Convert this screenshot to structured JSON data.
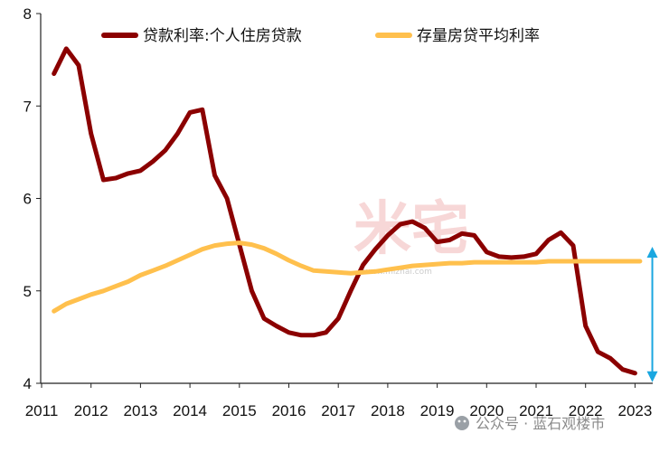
{
  "chart_data": {
    "type": "line",
    "title": "",
    "xlabel": "",
    "ylabel": "",
    "ylim": [
      4,
      8
    ],
    "xlim": [
      2011,
      2023.2
    ],
    "y_ticks": [
      4,
      5,
      6,
      7,
      8
    ],
    "x_ticks": [
      2011,
      2012,
      2013,
      2014,
      2015,
      2016,
      2017,
      2018,
      2019,
      2020,
      2021,
      2022,
      2023
    ],
    "grid": false,
    "legend_position": "top",
    "series": [
      {
        "name": "贷款利率:个人住房贷款",
        "color": "#8B0000",
        "points": [
          [
            2011.25,
            7.35
          ],
          [
            2011.5,
            7.62
          ],
          [
            2011.75,
            7.44
          ],
          [
            2012.0,
            6.7
          ],
          [
            2012.25,
            6.2
          ],
          [
            2012.5,
            6.22
          ],
          [
            2012.75,
            6.27
          ],
          [
            2013.0,
            6.3
          ],
          [
            2013.25,
            6.4
          ],
          [
            2013.5,
            6.52
          ],
          [
            2013.75,
            6.7
          ],
          [
            2014.0,
            6.93
          ],
          [
            2014.25,
            6.96
          ],
          [
            2014.5,
            6.25
          ],
          [
            2014.75,
            6.0
          ],
          [
            2015.0,
            5.5
          ],
          [
            2015.25,
            5.0
          ],
          [
            2015.5,
            4.7
          ],
          [
            2015.75,
            4.62
          ],
          [
            2016.0,
            4.55
          ],
          [
            2016.25,
            4.52
          ],
          [
            2016.5,
            4.52
          ],
          [
            2016.75,
            4.55
          ],
          [
            2017.0,
            4.7
          ],
          [
            2017.25,
            5.0
          ],
          [
            2017.5,
            5.28
          ],
          [
            2017.75,
            5.45
          ],
          [
            2018.0,
            5.6
          ],
          [
            2018.25,
            5.72
          ],
          [
            2018.5,
            5.75
          ],
          [
            2018.75,
            5.68
          ],
          [
            2019.0,
            5.53
          ],
          [
            2019.25,
            5.55
          ],
          [
            2019.5,
            5.62
          ],
          [
            2019.75,
            5.6
          ],
          [
            2020.0,
            5.42
          ],
          [
            2020.25,
            5.37
          ],
          [
            2020.5,
            5.36
          ],
          [
            2020.75,
            5.37
          ],
          [
            2021.0,
            5.4
          ],
          [
            2021.25,
            5.55
          ],
          [
            2021.5,
            5.63
          ],
          [
            2021.75,
            5.49
          ],
          [
            2022.0,
            4.62
          ],
          [
            2022.25,
            4.34
          ],
          [
            2022.5,
            4.27
          ],
          [
            2022.75,
            4.15
          ],
          [
            2023.0,
            4.11
          ]
        ]
      },
      {
        "name": "存量房贷平均利率",
        "color": "#FFC04D",
        "points": [
          [
            2011.25,
            4.78
          ],
          [
            2011.5,
            4.86
          ],
          [
            2011.75,
            4.91
          ],
          [
            2012.0,
            4.96
          ],
          [
            2012.25,
            5.0
          ],
          [
            2012.5,
            5.05
          ],
          [
            2012.75,
            5.1
          ],
          [
            2013.0,
            5.17
          ],
          [
            2013.25,
            5.22
          ],
          [
            2013.5,
            5.27
          ],
          [
            2013.75,
            5.33
          ],
          [
            2014.0,
            5.39
          ],
          [
            2014.25,
            5.45
          ],
          [
            2014.5,
            5.49
          ],
          [
            2014.75,
            5.51
          ],
          [
            2015.0,
            5.52
          ],
          [
            2015.25,
            5.5
          ],
          [
            2015.5,
            5.46
          ],
          [
            2015.75,
            5.4
          ],
          [
            2016.0,
            5.33
          ],
          [
            2016.25,
            5.27
          ],
          [
            2016.5,
            5.22
          ],
          [
            2016.75,
            5.21
          ],
          [
            2017.0,
            5.2
          ],
          [
            2017.25,
            5.19
          ],
          [
            2017.5,
            5.2
          ],
          [
            2017.75,
            5.21
          ],
          [
            2018.0,
            5.23
          ],
          [
            2018.25,
            5.25
          ],
          [
            2018.5,
            5.27
          ],
          [
            2018.75,
            5.28
          ],
          [
            2019.0,
            5.29
          ],
          [
            2019.25,
            5.3
          ],
          [
            2019.5,
            5.3
          ],
          [
            2019.75,
            5.31
          ],
          [
            2020.0,
            5.31
          ],
          [
            2020.25,
            5.31
          ],
          [
            2020.5,
            5.31
          ],
          [
            2020.75,
            5.31
          ],
          [
            2021.0,
            5.31
          ],
          [
            2021.25,
            5.32
          ],
          [
            2021.5,
            5.32
          ],
          [
            2021.75,
            5.32
          ],
          [
            2022.0,
            5.32
          ],
          [
            2022.25,
            5.32
          ],
          [
            2022.5,
            5.32
          ],
          [
            2022.75,
            5.32
          ],
          [
            2023.0,
            5.32
          ],
          [
            2023.1,
            5.32
          ]
        ]
      }
    ],
    "annotations": [
      {
        "type": "double-arrow",
        "color": "#1AA7E0",
        "x": 2023.35,
        "y_from": 5.32,
        "y_to": 4.11
      }
    ]
  },
  "watermark": {
    "text": "米宅",
    "subtext": "www.mizhai.com"
  },
  "footer": {
    "text": "公众号 · 蓝石观楼市"
  }
}
